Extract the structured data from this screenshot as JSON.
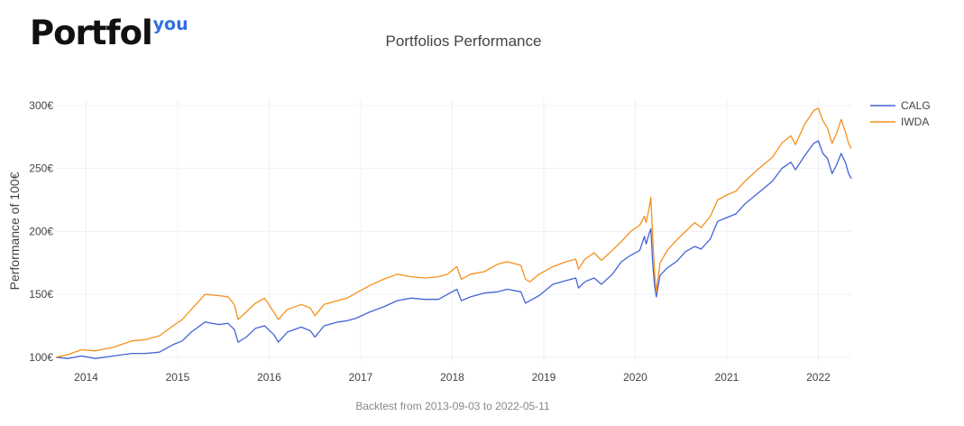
{
  "brand": {
    "name": "Portfol",
    "suffix": "you"
  },
  "colors": {
    "calg": "#4464d6",
    "iwda": "#f5911b",
    "grid": "#eef0f5",
    "text": "#444444"
  },
  "chart_data": {
    "type": "line",
    "title": "Portfolios Performance",
    "ylabel": "Performance of 100€",
    "caption": "Backtest from 2013-09-03 to 2022-05-11",
    "xlim": [
      2013.67,
      2022.36
    ],
    "ylim": [
      97,
      305
    ],
    "y_ticks": [
      100,
      150,
      200,
      250,
      300
    ],
    "y_tick_labels": [
      "100€",
      "150€",
      "200€",
      "250€",
      "300€"
    ],
    "x_ticks": [
      2014,
      2015,
      2016,
      2017,
      2018,
      2019,
      2020,
      2021,
      2022
    ],
    "x_tick_labels": [
      "2014",
      "2015",
      "2016",
      "2017",
      "2018",
      "2019",
      "2020",
      "2021",
      "2022"
    ],
    "legend_position": "top-right",
    "series": [
      {
        "name": "CALG",
        "color": "#4464d6",
        "points": [
          [
            2013.67,
            100
          ],
          [
            2013.8,
            99
          ],
          [
            2013.95,
            101
          ],
          [
            2014.1,
            99
          ],
          [
            2014.3,
            101
          ],
          [
            2014.5,
            103
          ],
          [
            2014.65,
            103
          ],
          [
            2014.8,
            104
          ],
          [
            2014.95,
            110
          ],
          [
            2015.05,
            113
          ],
          [
            2015.15,
            120
          ],
          [
            2015.3,
            128
          ],
          [
            2015.45,
            126
          ],
          [
            2015.55,
            127
          ],
          [
            2015.62,
            122
          ],
          [
            2015.66,
            112
          ],
          [
            2015.75,
            116
          ],
          [
            2015.85,
            123
          ],
          [
            2015.95,
            125
          ],
          [
            2016.05,
            118
          ],
          [
            2016.1,
            112
          ],
          [
            2016.2,
            120
          ],
          [
            2016.35,
            124
          ],
          [
            2016.45,
            121
          ],
          [
            2016.5,
            116
          ],
          [
            2016.6,
            125
          ],
          [
            2016.75,
            128
          ],
          [
            2016.85,
            129
          ],
          [
            2016.95,
            131
          ],
          [
            2017.1,
            136
          ],
          [
            2017.25,
            140
          ],
          [
            2017.4,
            145
          ],
          [
            2017.55,
            147
          ],
          [
            2017.7,
            146
          ],
          [
            2017.85,
            146
          ],
          [
            2017.95,
            150
          ],
          [
            2018.05,
            154
          ],
          [
            2018.1,
            145
          ],
          [
            2018.2,
            148
          ],
          [
            2018.35,
            151
          ],
          [
            2018.5,
            152
          ],
          [
            2018.6,
            154
          ],
          [
            2018.75,
            152
          ],
          [
            2018.8,
            143
          ],
          [
            2018.85,
            145
          ],
          [
            2018.95,
            149
          ],
          [
            2019.1,
            158
          ],
          [
            2019.25,
            161
          ],
          [
            2019.35,
            163
          ],
          [
            2019.38,
            155
          ],
          [
            2019.45,
            160
          ],
          [
            2019.55,
            163
          ],
          [
            2019.63,
            158
          ],
          [
            2019.75,
            166
          ],
          [
            2019.85,
            176
          ],
          [
            2019.95,
            181
          ],
          [
            2020.05,
            185
          ],
          [
            2020.1,
            196
          ],
          [
            2020.12,
            190
          ],
          [
            2020.15,
            198
          ],
          [
            2020.17,
            202
          ],
          [
            2020.19,
            175
          ],
          [
            2020.21,
            157
          ],
          [
            2020.23,
            148
          ],
          [
            2020.27,
            165
          ],
          [
            2020.35,
            171
          ],
          [
            2020.45,
            176
          ],
          [
            2020.55,
            184
          ],
          [
            2020.65,
            188
          ],
          [
            2020.72,
            186
          ],
          [
            2020.82,
            194
          ],
          [
            2020.9,
            208
          ],
          [
            2021.0,
            211
          ],
          [
            2021.1,
            214
          ],
          [
            2021.2,
            222
          ],
          [
            2021.35,
            231
          ],
          [
            2021.5,
            240
          ],
          [
            2021.6,
            250
          ],
          [
            2021.7,
            255
          ],
          [
            2021.75,
            249
          ],
          [
            2021.85,
            260
          ],
          [
            2021.95,
            270
          ],
          [
            2022.0,
            272
          ],
          [
            2022.05,
            262
          ],
          [
            2022.1,
            258
          ],
          [
            2022.15,
            246
          ],
          [
            2022.2,
            253
          ],
          [
            2022.25,
            262
          ],
          [
            2022.3,
            254
          ],
          [
            2022.33,
            246
          ],
          [
            2022.36,
            242
          ]
        ]
      },
      {
        "name": "IWDA",
        "color": "#f5911b",
        "points": [
          [
            2013.67,
            100
          ],
          [
            2013.8,
            102
          ],
          [
            2013.95,
            106
          ],
          [
            2014.1,
            105
          ],
          [
            2014.3,
            108
          ],
          [
            2014.5,
            113
          ],
          [
            2014.65,
            114
          ],
          [
            2014.8,
            117
          ],
          [
            2014.95,
            125
          ],
          [
            2015.05,
            130
          ],
          [
            2015.15,
            138
          ],
          [
            2015.3,
            150
          ],
          [
            2015.45,
            149
          ],
          [
            2015.55,
            148
          ],
          [
            2015.62,
            142
          ],
          [
            2015.66,
            130
          ],
          [
            2015.75,
            136
          ],
          [
            2015.85,
            143
          ],
          [
            2015.95,
            147
          ],
          [
            2016.05,
            136
          ],
          [
            2016.1,
            130
          ],
          [
            2016.2,
            138
          ],
          [
            2016.35,
            142
          ],
          [
            2016.45,
            139
          ],
          [
            2016.5,
            133
          ],
          [
            2016.6,
            142
          ],
          [
            2016.75,
            145
          ],
          [
            2016.85,
            147
          ],
          [
            2016.95,
            151
          ],
          [
            2017.1,
            157
          ],
          [
            2017.25,
            162
          ],
          [
            2017.4,
            166
          ],
          [
            2017.55,
            164
          ],
          [
            2017.7,
            163
          ],
          [
            2017.85,
            164
          ],
          [
            2017.95,
            166
          ],
          [
            2018.05,
            172
          ],
          [
            2018.1,
            162
          ],
          [
            2018.2,
            166
          ],
          [
            2018.35,
            168
          ],
          [
            2018.5,
            174
          ],
          [
            2018.6,
            176
          ],
          [
            2018.75,
            173
          ],
          [
            2018.8,
            162
          ],
          [
            2018.85,
            160
          ],
          [
            2018.95,
            166
          ],
          [
            2019.1,
            172
          ],
          [
            2019.25,
            176
          ],
          [
            2019.35,
            178
          ],
          [
            2019.38,
            170
          ],
          [
            2019.45,
            178
          ],
          [
            2019.55,
            183
          ],
          [
            2019.63,
            177
          ],
          [
            2019.75,
            185
          ],
          [
            2019.85,
            192
          ],
          [
            2019.95,
            200
          ],
          [
            2020.05,
            205
          ],
          [
            2020.1,
            212
          ],
          [
            2020.12,
            207
          ],
          [
            2020.15,
            218
          ],
          [
            2020.17,
            227
          ],
          [
            2020.19,
            195
          ],
          [
            2020.21,
            168
          ],
          [
            2020.23,
            152
          ],
          [
            2020.27,
            175
          ],
          [
            2020.35,
            185
          ],
          [
            2020.45,
            193
          ],
          [
            2020.55,
            200
          ],
          [
            2020.65,
            207
          ],
          [
            2020.72,
            203
          ],
          [
            2020.82,
            212
          ],
          [
            2020.9,
            225
          ],
          [
            2021.0,
            229
          ],
          [
            2021.1,
            232
          ],
          [
            2021.2,
            240
          ],
          [
            2021.35,
            250
          ],
          [
            2021.5,
            259
          ],
          [
            2021.6,
            270
          ],
          [
            2021.7,
            276
          ],
          [
            2021.75,
            269
          ],
          [
            2021.85,
            285
          ],
          [
            2021.95,
            296
          ],
          [
            2022.0,
            298
          ],
          [
            2022.05,
            288
          ],
          [
            2022.1,
            282
          ],
          [
            2022.15,
            270
          ],
          [
            2022.2,
            278
          ],
          [
            2022.25,
            289
          ],
          [
            2022.3,
            278
          ],
          [
            2022.33,
            270
          ],
          [
            2022.36,
            266
          ]
        ]
      }
    ]
  }
}
